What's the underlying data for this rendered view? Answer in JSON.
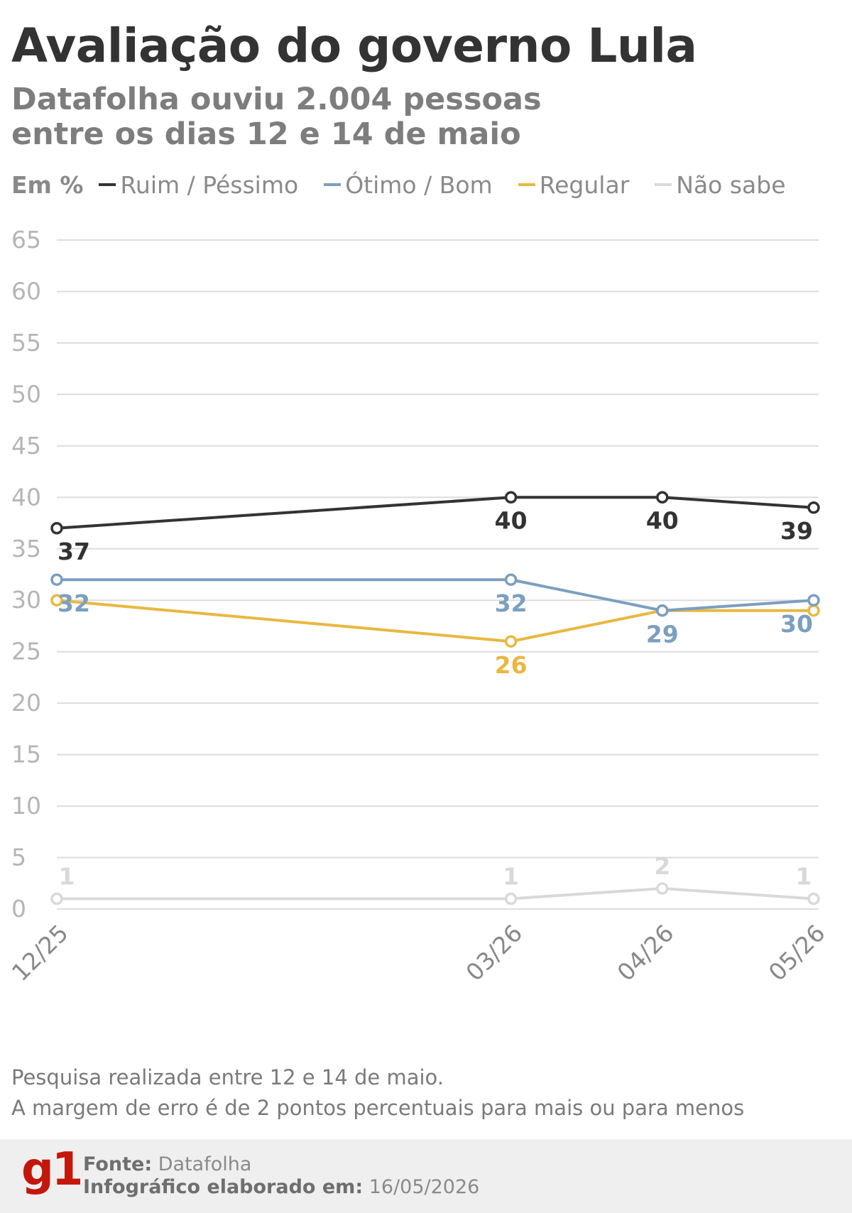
{
  "header": {
    "title": "Avaliação do governo Lula",
    "subtitle_line1": "Datafolha ouviu 2.004 pessoas",
    "subtitle_line2": "entre os dias 12 e 14 de maio"
  },
  "legend": {
    "unit_label": "Em %",
    "items": [
      {
        "label": "Ruim / Péssimo",
        "color": "#333333"
      },
      {
        "label": "Ótimo / Bom",
        "color": "#7b9fbf"
      },
      {
        "label": "Regular",
        "color": "#e8b840"
      },
      {
        "label": "Não sabe",
        "color": "#d9d9d9"
      }
    ]
  },
  "chart_data": {
    "type": "line",
    "x": [
      "12/25",
      "03/26",
      "04/26",
      "05/26"
    ],
    "x_dates": [
      "2025-12",
      "2026-03",
      "2026-04",
      "2026-05"
    ],
    "ylim": [
      0,
      65
    ],
    "yticks": [
      0,
      5,
      10,
      15,
      20,
      25,
      30,
      35,
      40,
      45,
      50,
      55,
      60,
      65
    ],
    "grid": true,
    "legend_position": "top",
    "series": [
      {
        "name": "Ruim / Péssimo",
        "color": "#333333",
        "values": [
          37,
          40,
          40,
          39
        ]
      },
      {
        "name": "Ótimo / Bom",
        "color": "#7b9fbf",
        "values": [
          32,
          32,
          29,
          30
        ]
      },
      {
        "name": "Regular",
        "color": "#e8b840",
        "values": [
          30,
          26,
          29,
          29
        ]
      },
      {
        "name": "Não sabe",
        "color": "#d9d9d9",
        "values": [
          1,
          1,
          2,
          1
        ]
      }
    ]
  },
  "notes": {
    "line1": "Pesquisa realizada entre 12 e 14 de maio.",
    "line2": "A margem de erro é de 2 pontos percentuais para mais ou para menos"
  },
  "footer": {
    "logo": "g1",
    "source_label": "Fonte:",
    "source_value": "Datafolha",
    "date_label": "Infográfico elaborado em:",
    "date_value": "16/05/2026"
  }
}
